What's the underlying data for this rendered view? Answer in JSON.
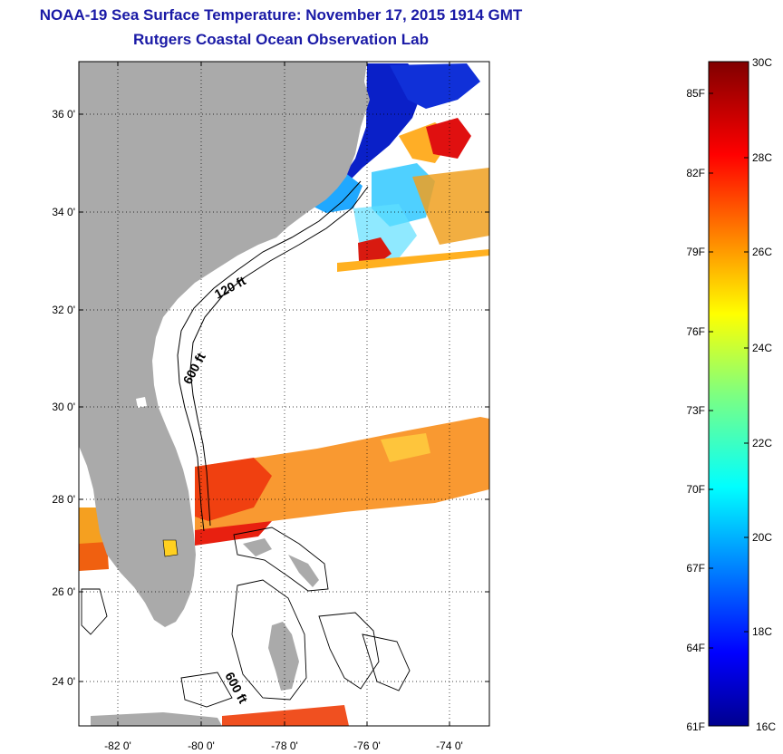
{
  "title": "NOAA-19 Sea Surface Temperature:  November 17, 2015 1914 GMT",
  "subtitle": "Rutgers Coastal Ocean Observation Lab",
  "axes": {
    "lat_ticks": [
      "36 0'",
      "34 0'",
      "32 0'",
      "30 0'",
      "28 0'",
      "26 0'",
      "24 0'"
    ],
    "lon_ticks": [
      "-82 0'",
      "-80 0'",
      "-78 0'",
      "-76 0'",
      "-74 0'"
    ]
  },
  "contour_labels": [
    "120 ft",
    "600 ft",
    "600 ft"
  ],
  "colorbar": {
    "celsius": [
      "30C",
      "28C",
      "26C",
      "24C",
      "22C",
      "20C",
      "18C",
      "16C"
    ],
    "fahrenheit": [
      "85F",
      "82F",
      "79F",
      "76F",
      "73F",
      "70F",
      "67F",
      "64F",
      "61F"
    ]
  },
  "colors": {
    "title": "#1a1aa6",
    "land": "#aaaaaa",
    "ocean_missing": "#ffffff",
    "scale_low": "#00008f",
    "scale_high": "#800000"
  }
}
